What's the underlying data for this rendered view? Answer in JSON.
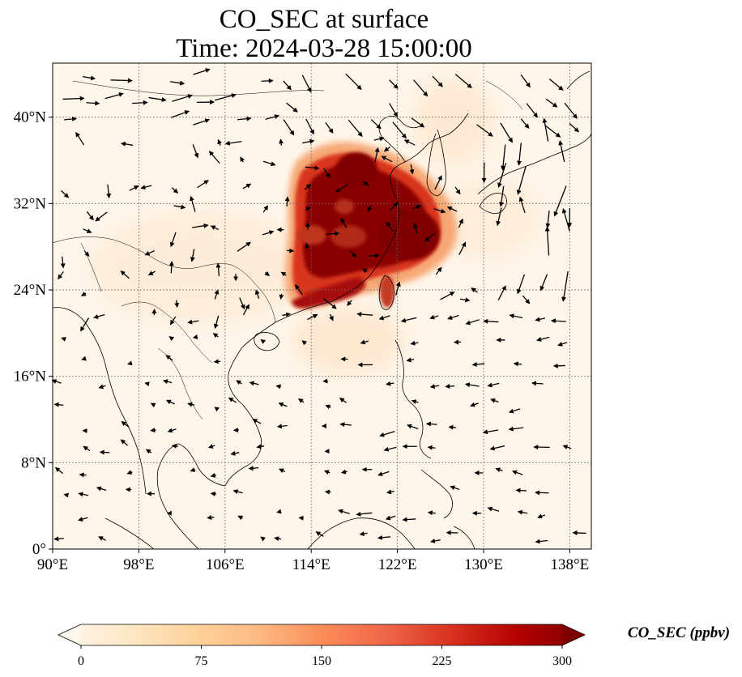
{
  "title": {
    "line1": "CO_SEC at surface",
    "line2": "Time: 2024-03-28 15:00:00"
  },
  "map": {
    "extent": {
      "lon": [
        90,
        140
      ],
      "lat": [
        0,
        45
      ]
    },
    "x_ticks": [
      {
        "value": 90,
        "label": "90°E"
      },
      {
        "value": 98,
        "label": "98°E"
      },
      {
        "value": 106,
        "label": "106°E"
      },
      {
        "value": 114,
        "label": "114°E"
      },
      {
        "value": 122,
        "label": "122°E"
      },
      {
        "value": 130,
        "label": "130°E"
      },
      {
        "value": 138,
        "label": "138°E"
      }
    ],
    "y_ticks": [
      {
        "value": 0,
        "label": "0°"
      },
      {
        "value": 8,
        "label": "8°N"
      },
      {
        "value": 16,
        "label": "16°N"
      },
      {
        "value": 24,
        "label": "24°N"
      },
      {
        "value": 32,
        "label": "32°N"
      },
      {
        "value": 40,
        "label": "40°N"
      }
    ],
    "gridlines": true,
    "background_color": "#fff6ea",
    "coastline_color": "#000000"
  },
  "colorbar": {
    "label": "CO_SEC (ppbv)",
    "min": 0,
    "max": 300,
    "ticks": [
      {
        "value": 0,
        "label": "0"
      },
      {
        "value": 75,
        "label": "75"
      },
      {
        "value": 150,
        "label": "150"
      },
      {
        "value": 225,
        "label": "225"
      },
      {
        "value": 300,
        "label": "300"
      }
    ],
    "extend": "both",
    "colormap": "OrRd",
    "colors": [
      "#fff7ec",
      "#fee8c8",
      "#fdd49e",
      "#fdbb84",
      "#fc8d59",
      "#ef6548",
      "#d7301f",
      "#b30000",
      "#7f0000"
    ]
  }
}
